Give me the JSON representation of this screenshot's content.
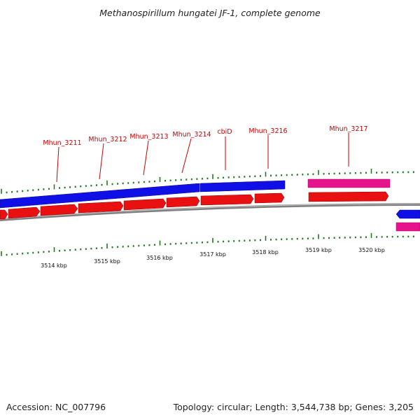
{
  "title": "Methanospirillum hungatei JF-1, complete genome",
  "footer": {
    "accession": "Accession: NC_007796",
    "summary": "Topology: circular; Length: 3,544,738 bp; Genes: 3,205"
  },
  "colors": {
    "forward_gene": "#1010e6",
    "cds": "#e81010",
    "rna_gene": "#e6148c",
    "backbone": "#808080",
    "ticks": "#1f7a1f",
    "gene_label": "#cc0000",
    "scale_label": "#111111"
  },
  "gene_labels": [
    "Mhun_3211",
    "Mhun_3212",
    "Mhun_3213",
    "Mhun_3214",
    "cbiD",
    "Mhun_3216",
    "Mhun_3217"
  ],
  "scale_labels": [
    "3514 kbp",
    "3515 kbp",
    "3516 kbp",
    "3517 kbp",
    "3518 kbp",
    "3519 kbp",
    "3520 kbp"
  ]
}
